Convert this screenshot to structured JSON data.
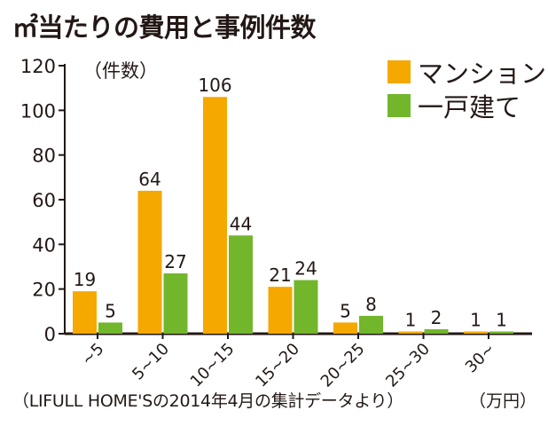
{
  "chart_data": {
    "type": "bar",
    "title": "㎡当たりの費用と事例件数",
    "ylabel": "（件数）",
    "xlabel": "（万円）",
    "ylim": [
      0,
      120
    ],
    "yticks": [
      0,
      20,
      40,
      60,
      80,
      100,
      120
    ],
    "categories": [
      "~5",
      "5~10",
      "10~15",
      "15~20",
      "20~25",
      "25~30",
      "30~"
    ],
    "series": [
      {
        "name": "マンション",
        "color": "#f5a800",
        "values": [
          19,
          64,
          106,
          21,
          5,
          1,
          1
        ]
      },
      {
        "name": "一戸建て",
        "color": "#72b62c",
        "values": [
          5,
          27,
          44,
          24,
          8,
          2,
          1
        ]
      }
    ],
    "legend_position": "top-right",
    "grid": false,
    "source": "（LIFULL HOME'Sの2014年4月の集計データより）"
  }
}
